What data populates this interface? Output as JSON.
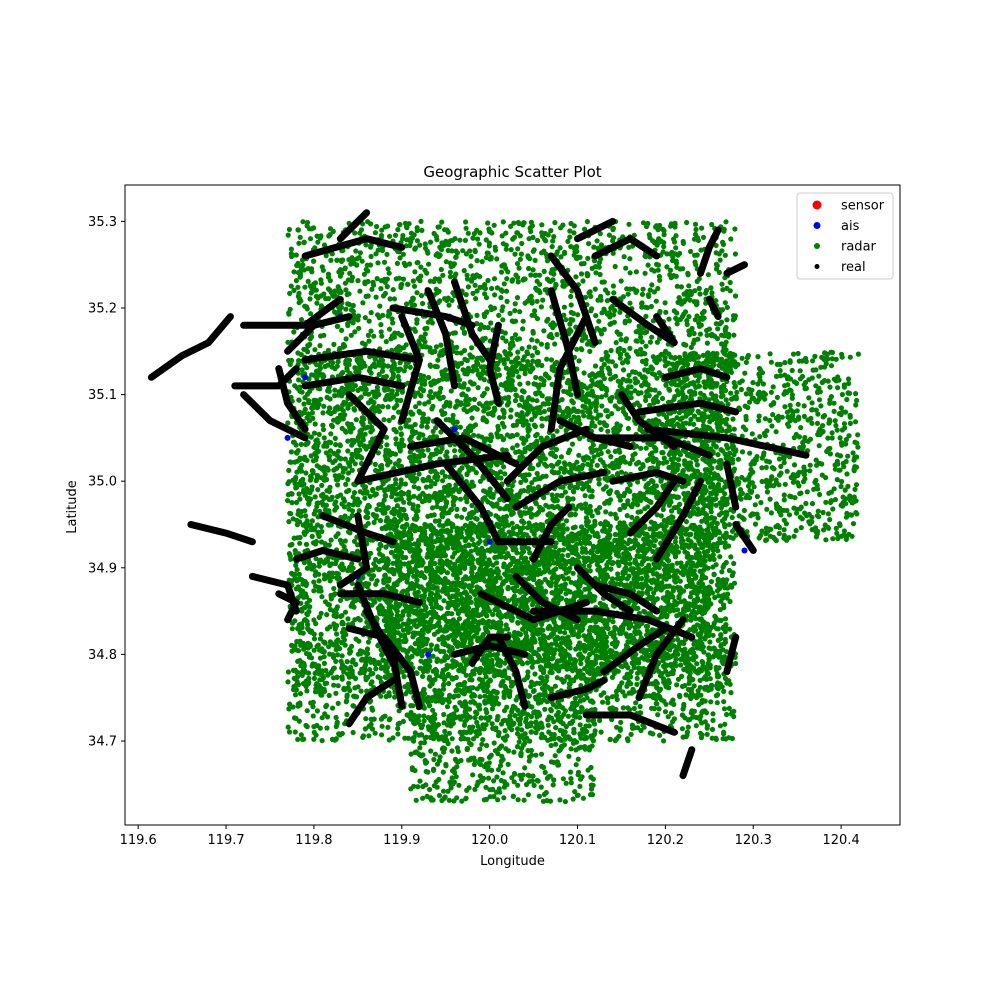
{
  "chart_data": {
    "type": "scatter",
    "title": "Geographic Scatter Plot",
    "xlabel": "Longitude",
    "ylabel": "Latitude",
    "xlim": [
      119.585,
      120.467
    ],
    "ylim": [
      34.603,
      35.342
    ],
    "x_ticks": [
      119.6,
      119.7,
      119.8,
      119.9,
      120.0,
      120.1,
      120.2,
      120.3,
      120.4
    ],
    "x_tick_labels": [
      "119.6",
      "119.7",
      "119.8",
      "119.9",
      "120.0",
      "120.1",
      "120.2",
      "120.3",
      "120.4"
    ],
    "y_ticks": [
      34.7,
      34.8,
      34.9,
      35.0,
      35.1,
      35.2,
      35.3
    ],
    "y_tick_labels": [
      "34.7",
      "34.8",
      "34.9",
      "35.0",
      "35.1",
      "35.2",
      "35.3"
    ],
    "grid": false,
    "legend_position": "top-right",
    "legend": [
      {
        "label": "sensor",
        "color": "#ff0000"
      },
      {
        "label": "ais",
        "color": "#0000ff"
      },
      {
        "label": "radar",
        "color": "#008000"
      },
      {
        "label": "real",
        "color": "#000000"
      }
    ],
    "series": [
      {
        "name": "sensor",
        "color": "#ff0000",
        "points": []
      },
      {
        "name": "ais",
        "color": "#0000ff",
        "points": [
          [
            119.83,
            35.19
          ],
          [
            119.79,
            35.12
          ],
          [
            119.77,
            35.05
          ],
          [
            119.84,
            34.72
          ],
          [
            119.77,
            34.84
          ],
          [
            120.29,
            34.92
          ],
          [
            120.27,
            34.78
          ],
          [
            119.96,
            35.06
          ],
          [
            120.0,
            34.93
          ],
          [
            120.16,
            34.73
          ],
          [
            119.85,
            34.89
          ],
          [
            119.93,
            34.8
          ]
        ]
      },
      {
        "name": "radar",
        "color": "#008000",
        "regions": [
          {
            "x": [
              119.77,
              120.28
            ],
            "y": [
              34.7,
              35.3
            ],
            "count": 5200
          },
          {
            "x": [
              119.78,
              120.27
            ],
            "y": [
              34.75,
              35.15
            ],
            "count": 3000
          },
          {
            "x": [
              120.2,
              120.42
            ],
            "y": [
              34.93,
              35.15
            ],
            "count": 900
          },
          {
            "x": [
              119.91,
              120.12
            ],
            "y": [
              34.63,
              34.76
            ],
            "count": 500
          },
          {
            "x": [
              119.88,
              120.25
            ],
            "y": [
              34.78,
              34.95
            ],
            "count": 1800
          }
        ]
      },
      {
        "name": "real",
        "color": "#000000",
        "tracks": [
          [
            [
              119.615,
              35.12
            ],
            [
              119.65,
              35.145
            ],
            [
              119.68,
              35.16
            ],
            [
              119.705,
              35.19
            ]
          ],
          [
            [
              119.71,
              35.11
            ],
            [
              119.76,
              35.11
            ],
            [
              119.78,
              35.13
            ]
          ],
          [
            [
              119.72,
              35.18
            ],
            [
              119.79,
              35.18
            ],
            [
              119.83,
              35.21
            ]
          ],
          [
            [
              119.76,
              35.13
            ],
            [
              119.77,
              35.09
            ],
            [
              119.79,
              35.06
            ]
          ],
          [
            [
              119.79,
              35.26
            ],
            [
              119.86,
              35.28
            ],
            [
              119.9,
              35.27
            ]
          ],
          [
            [
              119.83,
              35.28
            ],
            [
              119.86,
              35.31
            ]
          ],
          [
            [
              119.77,
              35.15
            ],
            [
              119.8,
              35.18
            ],
            [
              119.84,
              35.19
            ]
          ],
          [
            [
              119.79,
              35.14
            ],
            [
              119.86,
              35.15
            ],
            [
              119.92,
              35.14
            ]
          ],
          [
            [
              119.89,
              35.2
            ],
            [
              119.95,
              35.19
            ],
            [
              119.98,
              35.18
            ]
          ],
          [
            [
              119.9,
              35.19
            ],
            [
              119.92,
              35.14
            ],
            [
              119.9,
              35.07
            ]
          ],
          [
            [
              119.93,
              35.22
            ],
            [
              119.95,
              35.17
            ],
            [
              119.96,
              35.11
            ]
          ],
          [
            [
              119.96,
              35.23
            ],
            [
              119.98,
              35.17
            ],
            [
              120.0,
              35.14
            ]
          ],
          [
            [
              120.01,
              35.18
            ],
            [
              120.0,
              35.13
            ],
            [
              120.01,
              35.09
            ]
          ],
          [
            [
              120.07,
              35.26
            ],
            [
              120.1,
              35.22
            ],
            [
              120.12,
              35.16
            ]
          ],
          [
            [
              120.07,
              35.22
            ],
            [
              120.09,
              35.15
            ],
            [
              120.1,
              35.1
            ]
          ],
          [
            [
              120.11,
              35.19
            ],
            [
              120.08,
              35.13
            ],
            [
              120.07,
              35.06
            ]
          ],
          [
            [
              120.12,
              35.26
            ],
            [
              120.16,
              35.28
            ],
            [
              120.19,
              35.26
            ]
          ],
          [
            [
              120.1,
              35.28
            ],
            [
              120.14,
              35.3
            ]
          ],
          [
            [
              120.14,
              35.21
            ],
            [
              120.18,
              35.18
            ],
            [
              120.21,
              35.16
            ]
          ],
          [
            [
              120.19,
              35.19
            ],
            [
              120.21,
              35.16
            ]
          ],
          [
            [
              120.24,
              35.24
            ],
            [
              120.25,
              35.27
            ],
            [
              120.26,
              35.29
            ]
          ],
          [
            [
              120.27,
              35.24
            ],
            [
              120.29,
              35.25
            ]
          ],
          [
            [
              120.25,
              35.21
            ],
            [
              120.26,
              35.19
            ]
          ],
          [
            [
              119.72,
              35.1
            ],
            [
              119.75,
              35.07
            ],
            [
              119.79,
              35.05
            ]
          ],
          [
            [
              119.79,
              35.11
            ],
            [
              119.85,
              35.12
            ],
            [
              119.9,
              35.11
            ]
          ],
          [
            [
              119.84,
              35.1
            ],
            [
              119.88,
              35.06
            ],
            [
              119.85,
              35.0
            ]
          ],
          [
            [
              119.85,
              35.0
            ],
            [
              119.94,
              35.02
            ],
            [
              120.02,
              35.03
            ]
          ],
          [
            [
              119.91,
              35.04
            ],
            [
              119.97,
              35.05
            ],
            [
              120.03,
              35.02
            ]
          ],
          [
            [
              119.94,
              35.07
            ],
            [
              119.98,
              35.03
            ],
            [
              120.02,
              34.98
            ]
          ],
          [
            [
              119.95,
              35.02
            ],
            [
              119.99,
              34.97
            ],
            [
              120.01,
              34.93
            ]
          ],
          [
            [
              120.01,
              34.93
            ],
            [
              120.07,
              34.93
            ]
          ],
          [
            [
              120.02,
              35.0
            ],
            [
              120.06,
              35.04
            ],
            [
              120.11,
              35.06
            ]
          ],
          [
            [
              120.03,
              34.97
            ],
            [
              120.08,
              35.0
            ],
            [
              120.13,
              35.01
            ]
          ],
          [
            [
              120.08,
              35.07
            ],
            [
              120.12,
              35.05
            ],
            [
              120.16,
              35.04
            ]
          ],
          [
            [
              120.12,
              35.05
            ],
            [
              120.2,
              35.05
            ],
            [
              120.25,
              35.03
            ]
          ],
          [
            [
              120.18,
              35.06
            ],
            [
              120.27,
              35.05
            ],
            [
              120.36,
              35.03
            ]
          ],
          [
            [
              120.17,
              35.08
            ],
            [
              120.24,
              35.09
            ],
            [
              120.28,
              35.08
            ]
          ],
          [
            [
              120.15,
              35.1
            ],
            [
              120.17,
              35.07
            ],
            [
              120.21,
              35.04
            ]
          ],
          [
            [
              120.2,
              35.12
            ],
            [
              120.24,
              35.13
            ],
            [
              120.27,
              35.12
            ]
          ],
          [
            [
              120.14,
              35.0
            ],
            [
              120.19,
              35.01
            ],
            [
              120.22,
              35.0
            ]
          ],
          [
            [
              120.16,
              34.94
            ],
            [
              120.19,
              34.97
            ],
            [
              120.21,
              35.0
            ]
          ],
          [
            [
              120.19,
              34.91
            ],
            [
              120.22,
              34.96
            ],
            [
              120.24,
              35.0
            ]
          ],
          [
            [
              120.27,
              35.02
            ],
            [
              120.28,
              34.97
            ]
          ],
          [
            [
              120.28,
              34.95
            ],
            [
              120.3,
              34.92
            ]
          ],
          [
            [
              120.05,
              34.91
            ],
            [
              120.07,
              34.95
            ],
            [
              120.09,
              34.97
            ]
          ],
          [
            [
              119.81,
              34.96
            ],
            [
              119.86,
              34.94
            ],
            [
              119.89,
              34.93
            ]
          ],
          [
            [
              119.85,
              34.96
            ],
            [
              119.86,
              34.9
            ],
            [
              119.83,
              34.88
            ]
          ],
          [
            [
              119.78,
              34.91
            ],
            [
              119.81,
              34.92
            ],
            [
              119.85,
              34.91
            ]
          ],
          [
            [
              119.66,
              34.95
            ],
            [
              119.7,
              34.94
            ],
            [
              119.73,
              34.93
            ]
          ],
          [
            [
              119.73,
              34.89
            ],
            [
              119.77,
              34.88
            ],
            [
              119.78,
              34.85
            ]
          ],
          [
            [
              119.76,
              34.87
            ],
            [
              119.78,
              34.86
            ],
            [
              119.77,
              34.84
            ]
          ],
          [
            [
              119.83,
              34.87
            ],
            [
              119.88,
              34.87
            ],
            [
              119.92,
              34.86
            ]
          ],
          [
            [
              119.86,
              34.85
            ],
            [
              119.89,
              34.8
            ],
            [
              119.9,
              34.74
            ]
          ],
          [
            [
              119.84,
              34.83
            ],
            [
              119.88,
              34.82
            ],
            [
              119.91,
              34.78
            ],
            [
              119.92,
              34.74
            ]
          ],
          [
            [
              119.85,
              34.88
            ],
            [
              119.87,
              34.83
            ],
            [
              119.89,
              34.79
            ]
          ],
          [
            [
              119.84,
              34.72
            ],
            [
              119.86,
              34.75
            ],
            [
              119.89,
              34.77
            ]
          ],
          [
            [
              119.96,
              34.8
            ],
            [
              120.0,
              34.81
            ],
            [
              120.04,
              34.8
            ]
          ],
          [
            [
              119.98,
              34.79
            ],
            [
              120.0,
              34.82
            ],
            [
              120.02,
              34.82
            ]
          ],
          [
            [
              120.01,
              34.82
            ],
            [
              120.03,
              34.78
            ],
            [
              120.04,
              34.74
            ]
          ],
          [
            [
              119.99,
              34.87
            ],
            [
              120.05,
              34.84
            ],
            [
              120.11,
              34.86
            ]
          ],
          [
            [
              120.05,
              34.85
            ],
            [
              120.12,
              34.85
            ],
            [
              120.18,
              34.84
            ],
            [
              120.23,
              34.82
            ]
          ],
          [
            [
              120.1,
              34.9
            ],
            [
              120.13,
              34.87
            ],
            [
              120.16,
              34.85
            ]
          ],
          [
            [
              120.12,
              34.88
            ],
            [
              120.16,
              34.87
            ],
            [
              120.19,
              34.85
            ]
          ],
          [
            [
              120.13,
              34.78
            ],
            [
              120.17,
              34.81
            ],
            [
              120.2,
              34.83
            ]
          ],
          [
            [
              120.17,
              34.75
            ],
            [
              120.19,
              34.8
            ],
            [
              120.22,
              34.84
            ]
          ],
          [
            [
              120.07,
              34.75
            ],
            [
              120.11,
              34.76
            ],
            [
              120.13,
              34.77
            ]
          ],
          [
            [
              120.11,
              34.73
            ],
            [
              120.16,
              34.73
            ],
            [
              120.21,
              34.71
            ]
          ],
          [
            [
              120.22,
              34.66
            ],
            [
              120.23,
              34.69
            ]
          ],
          [
            [
              120.27,
              34.78
            ],
            [
              120.28,
              34.82
            ]
          ],
          [
            [
              120.03,
              34.89
            ],
            [
              120.06,
              34.86
            ],
            [
              120.1,
              34.84
            ]
          ]
        ]
      }
    ]
  }
}
